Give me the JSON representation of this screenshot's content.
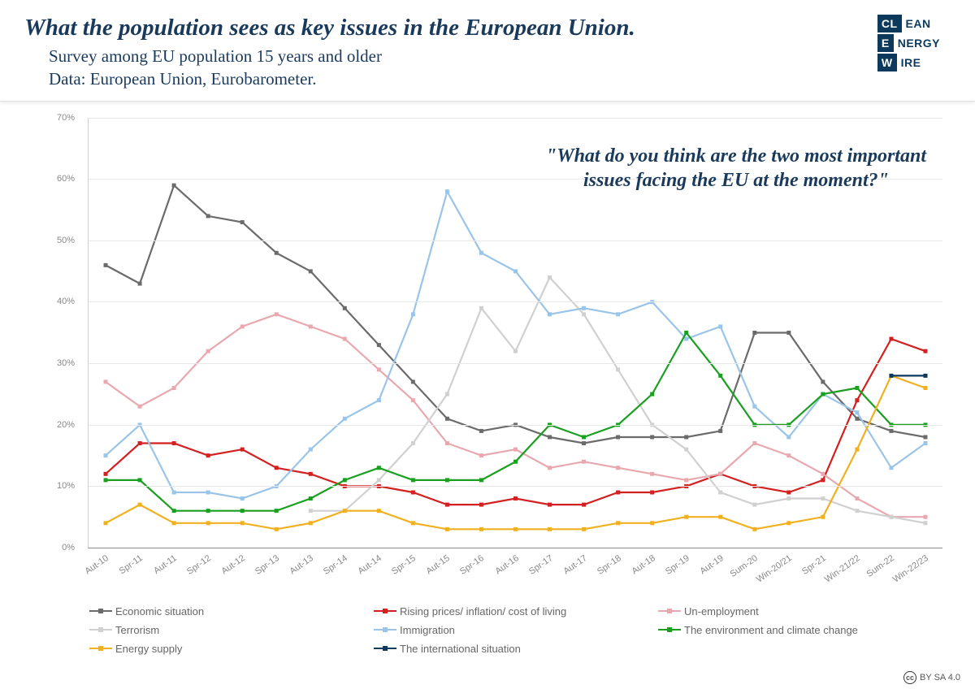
{
  "header": {
    "title": "What the population sees as key issues in the European Union.",
    "subtitle_line1": "Survey among EU population 15 years and older",
    "subtitle_line2": "Data: European Union, Eurobarometer.",
    "logo": {
      "row1": [
        "CL",
        "EAN"
      ],
      "row2": [
        "E",
        "NERGY"
      ],
      "row3": [
        "W",
        "IRE"
      ]
    }
  },
  "chart": {
    "type": "line",
    "question_line1": "\"What do you think are the two most important",
    "question_line2": "issues facing the EU at the moment?\"",
    "y_axis": {
      "min": 0,
      "max": 70,
      "step": 10,
      "suffix": "%",
      "label_fontsize": 11,
      "label_color": "#888888"
    },
    "x_categories": [
      "Aut-10",
      "Spr-11",
      "Aut-11",
      "Spr-12",
      "Aut-12",
      "Spr-13",
      "Aut-13",
      "Spr-14",
      "Aut-14",
      "Spr-15",
      "Aut-15",
      "Spr-16",
      "Aut-16",
      "Spr-17",
      "Aut-17",
      "Spr-18",
      "Aut-18",
      "Spr-19",
      "Aut-19",
      "Sum-20",
      "Win-20/21",
      "Spr-21",
      "Win-21/22",
      "Sum-22",
      "Win-22/23"
    ],
    "background_color": "#ffffff",
    "grid_color": "#e8e8e8",
    "line_width": 2.2,
    "marker_size": 5,
    "x_label_rotation": -35,
    "series": [
      {
        "name": "Economic situation",
        "color": "#6b6b6b",
        "values": [
          46,
          43,
          59,
          54,
          53,
          48,
          45,
          39,
          33,
          27,
          21,
          19,
          20,
          18,
          17,
          18,
          18,
          18,
          19,
          35,
          35,
          27,
          21,
          19,
          18
        ]
      },
      {
        "name": "Rising prices/ inflation/ cost of living",
        "color": "#d32020",
        "values": [
          12,
          17,
          17,
          15,
          16,
          13,
          12,
          10,
          10,
          9,
          7,
          7,
          8,
          7,
          7,
          9,
          9,
          10,
          12,
          10,
          9,
          11,
          24,
          34,
          32
        ]
      },
      {
        "name": "Un-employment",
        "color": "#e8a8b0",
        "values": [
          27,
          23,
          26,
          32,
          36,
          38,
          36,
          34,
          29,
          24,
          17,
          15,
          16,
          13,
          14,
          13,
          12,
          11,
          12,
          17,
          15,
          12,
          8,
          5,
          5
        ]
      },
      {
        "name": "Terrorism",
        "color": "#d0d0d0",
        "values": [
          null,
          null,
          null,
          null,
          null,
          null,
          6,
          6,
          11,
          17,
          25,
          39,
          32,
          44,
          38,
          29,
          20,
          16,
          9,
          7,
          8,
          8,
          6,
          5,
          4
        ]
      },
      {
        "name": "Immigration",
        "color": "#9ac4e8",
        "values": [
          15,
          20,
          9,
          9,
          8,
          10,
          16,
          21,
          24,
          38,
          58,
          48,
          45,
          38,
          39,
          38,
          40,
          34,
          36,
          23,
          18,
          25,
          22,
          13,
          17
        ]
      },
      {
        "name": "The environment and climate change",
        "color": "#1aa020",
        "values": [
          11,
          11,
          6,
          6,
          6,
          6,
          8,
          11,
          13,
          11,
          11,
          11,
          14,
          20,
          18,
          20,
          25,
          35,
          28,
          20,
          20,
          25,
          26,
          20,
          20
        ]
      },
      {
        "name": "Energy supply",
        "color": "#f0b020",
        "values": [
          4,
          7,
          4,
          4,
          4,
          3,
          4,
          6,
          6,
          4,
          3,
          3,
          3,
          3,
          3,
          4,
          4,
          5,
          5,
          3,
          4,
          5,
          16,
          28,
          26
        ]
      },
      {
        "name": "The international situation",
        "color": "#0d3a5c",
        "values": [
          null,
          null,
          null,
          null,
          null,
          null,
          null,
          null,
          null,
          null,
          null,
          null,
          null,
          null,
          null,
          null,
          null,
          null,
          null,
          null,
          null,
          null,
          null,
          28,
          28
        ]
      }
    ]
  },
  "footer": {
    "license": "BY SA 4.0",
    "cc_symbol": "cc"
  }
}
